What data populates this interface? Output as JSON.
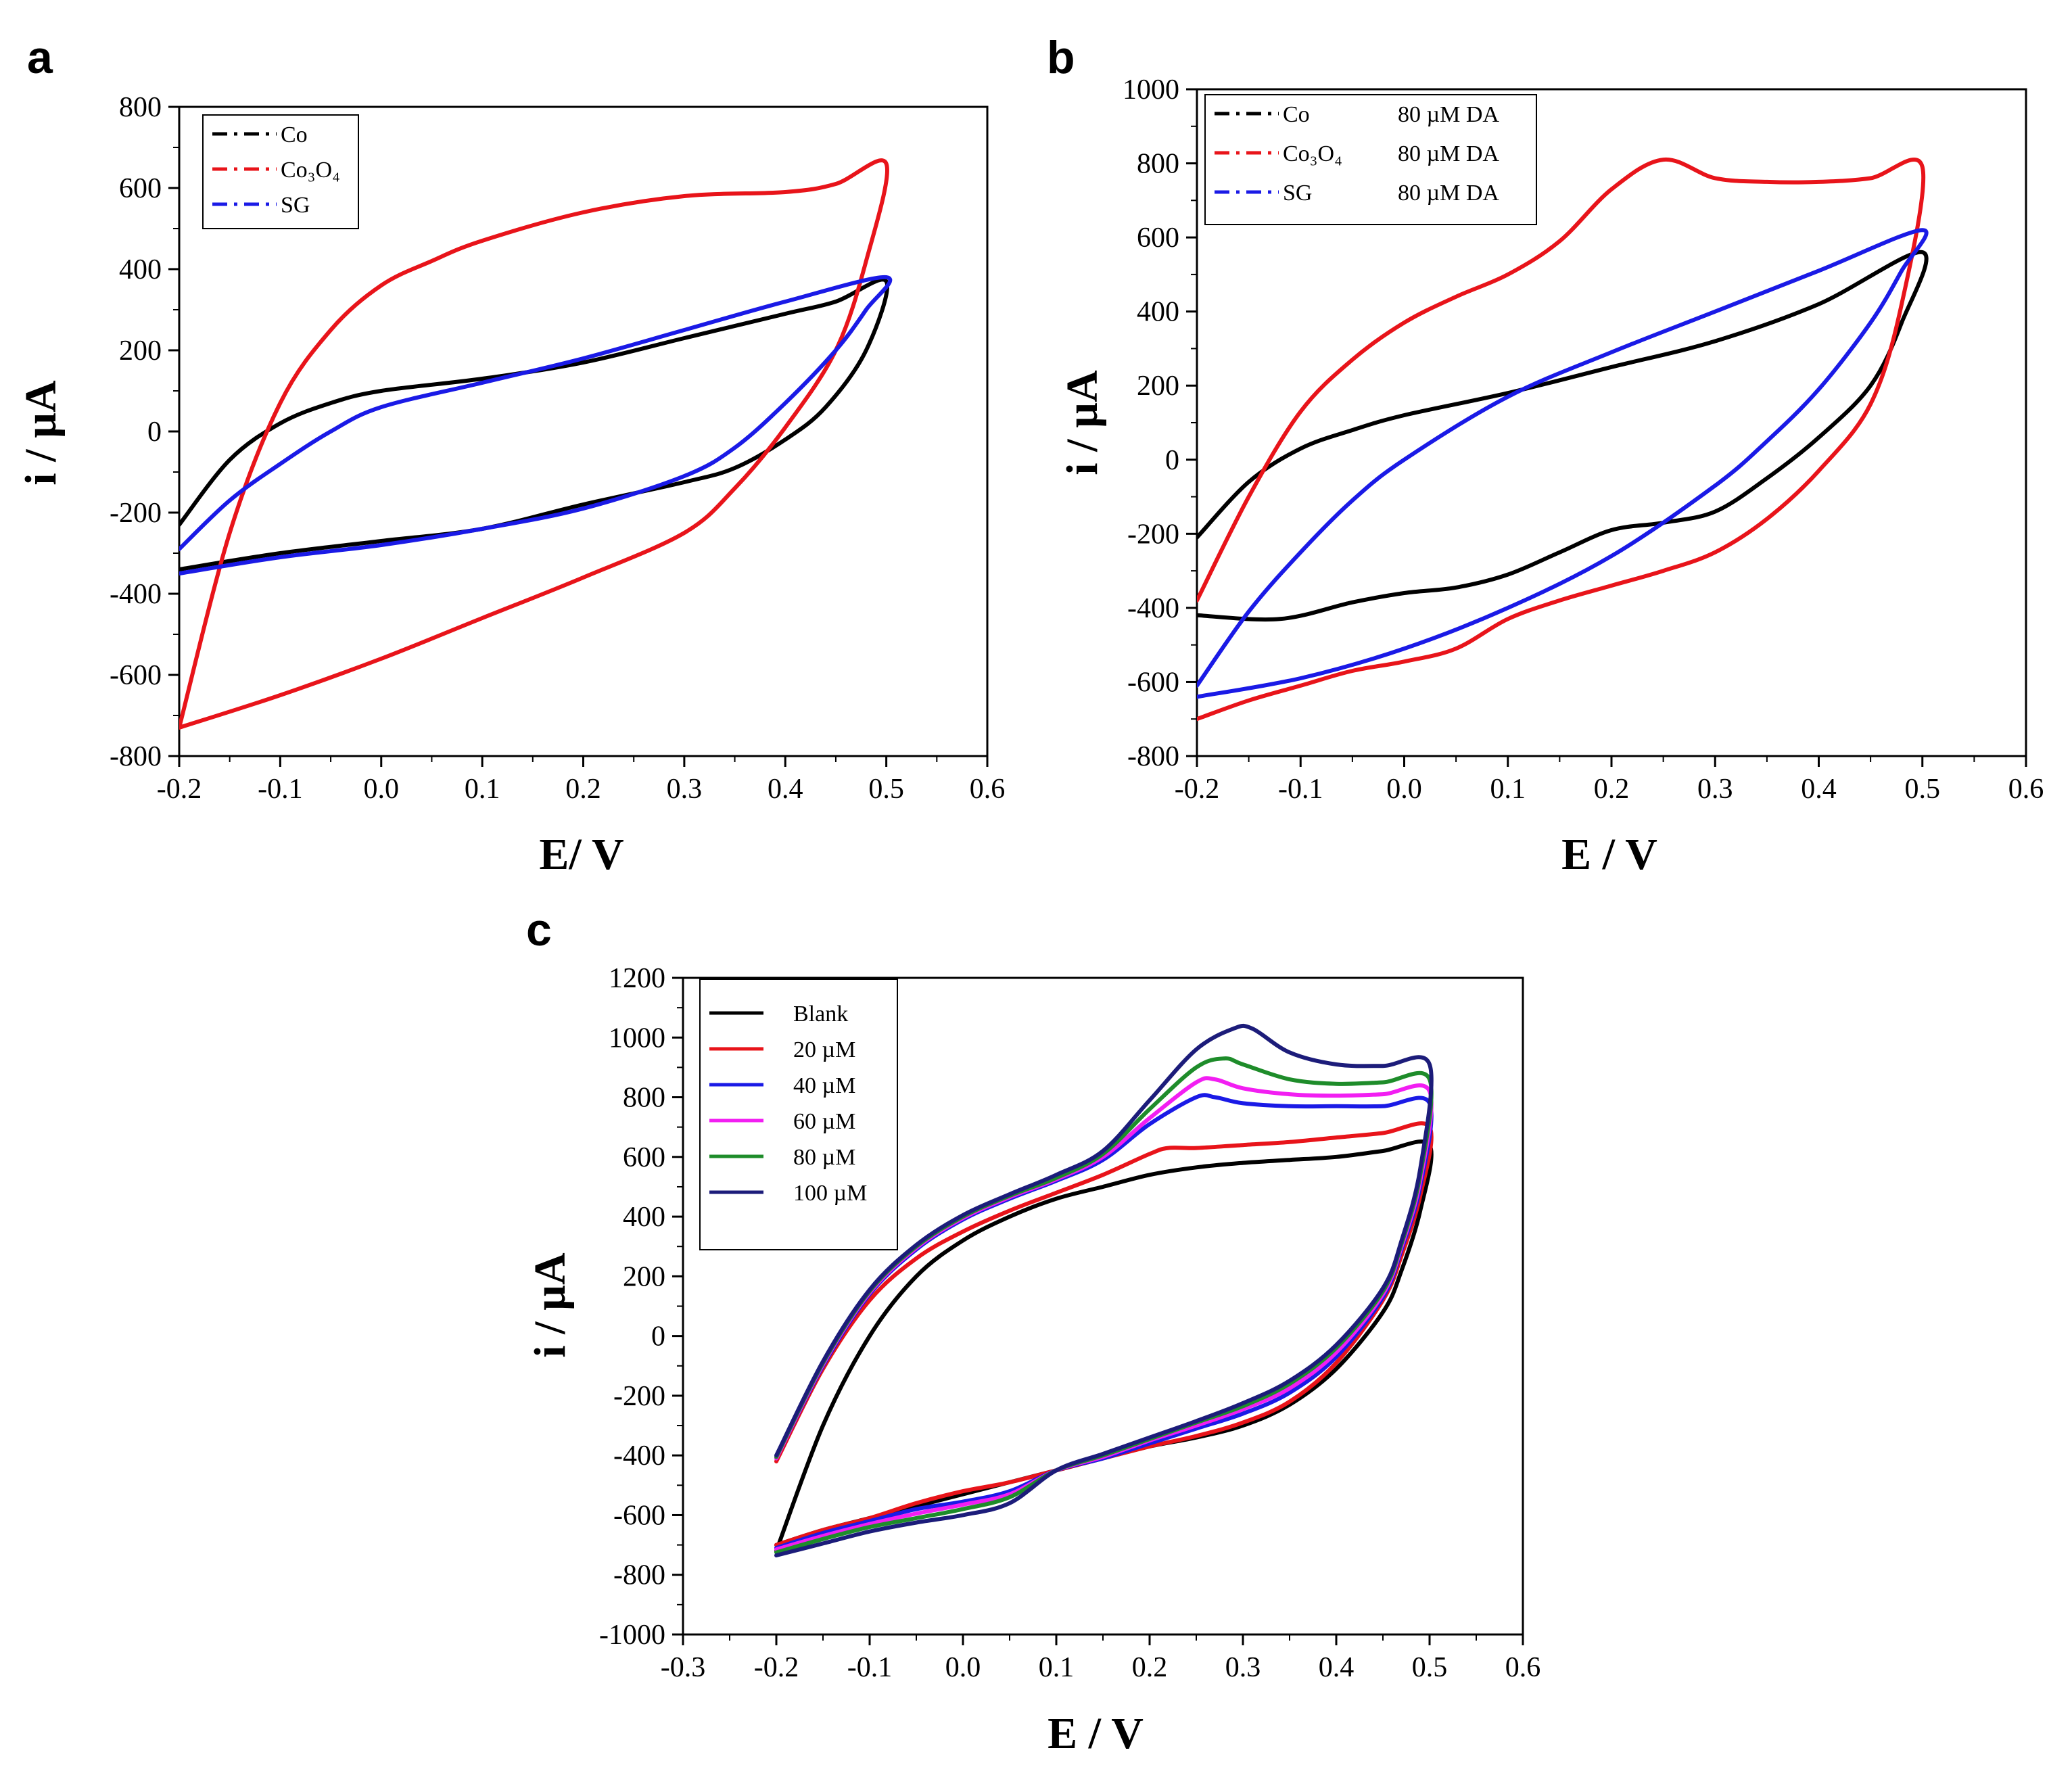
{
  "chart_data": [
    {
      "panel": "a",
      "type": "line",
      "title": "",
      "xlabel": "E/ V",
      "ylabel": "i / µA",
      "xlim": [
        -0.2,
        0.6
      ],
      "ylim": [
        -800,
        800
      ],
      "xticks": [
        "-0.2",
        "-0.1",
        "0.0",
        "0.1",
        "0.2",
        "0.3",
        "0.4",
        "0.5",
        "0.6"
      ],
      "yticks": [
        "800",
        "600",
        "400",
        "200",
        "0",
        "-200",
        "-400",
        "-600",
        "-800"
      ],
      "legend": {
        "placement": "top-left",
        "style": "dash-dot"
      },
      "series": [
        {
          "name": "Co",
          "legend_label": "Co",
          "color": "#000000",
          "x": [
            -0.2,
            -0.15,
            -0.1,
            -0.05,
            0.0,
            0.1,
            0.2,
            0.3,
            0.4,
            0.45,
            0.5,
            0.48,
            0.44,
            0.4,
            0.35,
            0.3,
            0.2,
            0.1,
            0.0,
            -0.1,
            -0.2
          ],
          "y": [
            -230,
            -70,
            20,
            70,
            100,
            130,
            170,
            230,
            290,
            320,
            370,
            200,
            60,
            -20,
            -90,
            -125,
            -180,
            -240,
            -270,
            -300,
            -340
          ]
        },
        {
          "name": "Co3O4",
          "legend_label": "Co₃O₄",
          "color": "#e8141a",
          "x": [
            -0.2,
            -0.15,
            -0.1,
            -0.05,
            0.0,
            0.05,
            0.1,
            0.2,
            0.3,
            0.4,
            0.45,
            0.5,
            0.48,
            0.45,
            0.4,
            0.35,
            0.3,
            0.2,
            0.1,
            0.0,
            -0.1,
            -0.2
          ],
          "y": [
            -730,
            -250,
            70,
            250,
            360,
            420,
            470,
            540,
            580,
            590,
            610,
            660,
            420,
            200,
            10,
            -140,
            -250,
            -360,
            -460,
            -560,
            -650,
            -730
          ]
        },
        {
          "name": "SG",
          "legend_label": "SG",
          "color": "#1a1ae6",
          "x": [
            -0.2,
            -0.15,
            -0.1,
            -0.05,
            0.0,
            0.1,
            0.2,
            0.3,
            0.4,
            0.5,
            0.48,
            0.45,
            0.4,
            0.35,
            0.3,
            0.2,
            0.1,
            0.0,
            -0.1,
            -0.2
          ],
          "y": [
            -290,
            -170,
            -80,
            0,
            60,
            120,
            180,
            250,
            320,
            380,
            300,
            200,
            70,
            -40,
            -110,
            -190,
            -240,
            -280,
            -310,
            -350
          ]
        }
      ]
    },
    {
      "panel": "b",
      "type": "line",
      "title": "",
      "xlabel": "E / V",
      "ylabel": "i / µA",
      "xlim": [
        -0.2,
        0.6
      ],
      "ylim": [
        -800,
        1000
      ],
      "xticks": [
        "-0.2",
        "-0.1",
        "0.0",
        "0.1",
        "0.2",
        "0.3",
        "0.4",
        "0.5",
        "0.6"
      ],
      "yticks": [
        "1000",
        "800",
        "600",
        "400",
        "200",
        "0",
        "-200",
        "-400",
        "-600",
        "-800"
      ],
      "legend": {
        "placement": "top-left",
        "style": "dash-dot"
      },
      "series": [
        {
          "name": "Co",
          "legend_label": "Co",
          "legend_suffix": "80 µM DA",
          "color": "#000000",
          "x": [
            -0.2,
            -0.15,
            -0.1,
            -0.05,
            0.0,
            0.1,
            0.2,
            0.3,
            0.4,
            0.5,
            0.48,
            0.45,
            0.4,
            0.35,
            0.3,
            0.25,
            0.2,
            0.15,
            0.1,
            0.05,
            0.0,
            -0.05,
            -0.12,
            -0.2
          ],
          "y": [
            -210,
            -60,
            30,
            80,
            120,
            180,
            250,
            320,
            420,
            560,
            370,
            200,
            60,
            -50,
            -140,
            -170,
            -190,
            -250,
            -310,
            -345,
            -360,
            -385,
            -430,
            -420
          ]
        },
        {
          "name": "Co3O4",
          "legend_label": "Co₃O₄",
          "legend_suffix": "80 µM  DA",
          "color": "#e8141a",
          "x": [
            -0.2,
            -0.15,
            -0.1,
            -0.05,
            0.0,
            0.05,
            0.1,
            0.15,
            0.2,
            0.25,
            0.3,
            0.35,
            0.4,
            0.45,
            0.5,
            0.48,
            0.45,
            0.4,
            0.35,
            0.3,
            0.25,
            0.2,
            0.15,
            0.1,
            0.05,
            0.0,
            -0.05,
            -0.1,
            -0.15,
            -0.2
          ],
          "y": [
            -380,
            -100,
            130,
            270,
            370,
            440,
            500,
            590,
            730,
            810,
            760,
            750,
            750,
            760,
            790,
            420,
            150,
            -30,
            -160,
            -250,
            -300,
            -340,
            -380,
            -430,
            -510,
            -545,
            -570,
            -610,
            -650,
            -700
          ]
        },
        {
          "name": "SG",
          "legend_label": "SG",
          "legend_suffix": "80 µM DA",
          "color": "#1a1ae6",
          "x": [
            -0.2,
            -0.15,
            -0.1,
            -0.05,
            0.0,
            0.1,
            0.2,
            0.3,
            0.4,
            0.5,
            0.48,
            0.45,
            0.4,
            0.35,
            0.3,
            0.2,
            0.1,
            0.0,
            -0.1,
            -0.2
          ],
          "y": [
            -610,
            -410,
            -250,
            -110,
            0,
            170,
            290,
            400,
            510,
            620,
            510,
            370,
            190,
            50,
            -70,
            -260,
            -400,
            -510,
            -590,
            -640
          ]
        }
      ]
    },
    {
      "panel": "c",
      "type": "line",
      "title": "",
      "xlabel": "E / V",
      "ylabel": "i / µA",
      "xlim": [
        -0.3,
        0.6
      ],
      "ylim": [
        -1000,
        1200
      ],
      "xticks": [
        "-0.3",
        "-0.2",
        "-0.1",
        "0.0",
        "0.1",
        "0.2",
        "0.3",
        "0.4",
        "0.5",
        "0.6"
      ],
      "yticks": [
        "1200",
        "1000",
        "800",
        "600",
        "400",
        "200",
        "0",
        "-200",
        "-400",
        "-600",
        "-800",
        "-1000"
      ],
      "legend": {
        "placement": "top-left",
        "style": "solid"
      },
      "series": [
        {
          "name": "Blank",
          "legend_label": "Blank",
          "color": "#000000",
          "x": [
            -0.2,
            -0.15,
            -0.1,
            -0.05,
            0.0,
            0.05,
            0.1,
            0.15,
            0.2,
            0.25,
            0.3,
            0.35,
            0.4,
            0.45,
            0.5,
            0.49,
            0.47,
            0.45,
            0.4,
            0.35,
            0.3,
            0.25,
            0.2,
            0.15,
            0.1,
            0.05,
            0.0,
            -0.05,
            -0.1,
            -0.15,
            -0.2
          ],
          "y": [
            -720,
            -300,
            0,
            200,
            320,
            400,
            460,
            500,
            540,
            565,
            580,
            590,
            600,
            620,
            640,
            420,
            220,
            80,
            -110,
            -230,
            -300,
            -340,
            -370,
            -410,
            -450,
            -490,
            -530,
            -570,
            -610,
            -650,
            -700
          ]
        },
        {
          "name": "20 µM",
          "legend_label": "20 µM",
          "color": "#e8141a",
          "x": [
            -0.2,
            -0.15,
            -0.1,
            -0.05,
            0.0,
            0.05,
            0.1,
            0.15,
            0.2,
            0.22,
            0.25,
            0.3,
            0.35,
            0.4,
            0.45,
            0.5,
            0.49,
            0.47,
            0.45,
            0.4,
            0.35,
            0.3,
            0.25,
            0.2,
            0.15,
            0.1,
            0.05,
            0.0,
            -0.05,
            -0.1,
            -0.15,
            -0.2
          ],
          "y": [
            -420,
            -110,
            120,
            260,
            350,
            420,
            480,
            540,
            610,
            630,
            630,
            640,
            650,
            665,
            680,
            700,
            470,
            270,
            120,
            -90,
            -220,
            -290,
            -335,
            -370,
            -410,
            -450,
            -490,
            -520,
            -560,
            -610,
            -650,
            -700
          ]
        },
        {
          "name": "40 µM",
          "legend_label": "40 µM",
          "color": "#1a1ae6",
          "x": [
            -0.2,
            -0.15,
            -0.1,
            -0.05,
            0.0,
            0.05,
            0.1,
            0.15,
            0.2,
            0.25,
            0.27,
            0.3,
            0.35,
            0.4,
            0.45,
            0.5,
            0.49,
            0.47,
            0.45,
            0.4,
            0.35,
            0.3,
            0.25,
            0.2,
            0.15,
            0.1,
            0.05,
            0.0,
            -0.05,
            -0.1,
            -0.15,
            -0.2
          ],
          "y": [
            -410,
            -100,
            140,
            290,
            390,
            460,
            520,
            590,
            710,
            800,
            800,
            780,
            770,
            770,
            770,
            780,
            500,
            290,
            130,
            -70,
            -190,
            -260,
            -310,
            -360,
            -410,
            -450,
            -520,
            -555,
            -580,
            -620,
            -660,
            -710
          ]
        },
        {
          "name": "60 µM",
          "legend_label": "60 µM",
          "color": "#f21ef2",
          "x": [
            -0.2,
            -0.15,
            -0.1,
            -0.05,
            0.0,
            0.05,
            0.1,
            0.15,
            0.2,
            0.25,
            0.27,
            0.3,
            0.35,
            0.4,
            0.45,
            0.5,
            0.49,
            0.47,
            0.45,
            0.4,
            0.35,
            0.3,
            0.25,
            0.2,
            0.15,
            0.1,
            0.05,
            0.0,
            -0.05,
            -0.1,
            -0.15,
            -0.2
          ],
          "y": [
            -410,
            -95,
            145,
            295,
            395,
            465,
            525,
            600,
            730,
            850,
            860,
            830,
            810,
            805,
            810,
            820,
            520,
            300,
            140,
            -55,
            -175,
            -245,
            -300,
            -350,
            -405,
            -450,
            -530,
            -565,
            -595,
            -630,
            -670,
            -715
          ]
        },
        {
          "name": "80 µM",
          "legend_label": "80 µM",
          "color": "#1e8c2a",
          "x": [
            -0.2,
            -0.15,
            -0.1,
            -0.05,
            0.0,
            0.05,
            0.1,
            0.15,
            0.2,
            0.25,
            0.28,
            0.3,
            0.35,
            0.4,
            0.45,
            0.5,
            0.49,
            0.47,
            0.45,
            0.4,
            0.35,
            0.3,
            0.25,
            0.2,
            0.15,
            0.1,
            0.05,
            0.0,
            -0.05,
            -0.1,
            -0.15,
            -0.2
          ],
          "y": [
            -405,
            -90,
            150,
            300,
            400,
            470,
            530,
            610,
            760,
            900,
            930,
            910,
            860,
            845,
            850,
            860,
            540,
            310,
            150,
            -40,
            -160,
            -235,
            -290,
            -345,
            -400,
            -450,
            -540,
            -580,
            -610,
            -640,
            -680,
            -725
          ]
        },
        {
          "name": "100 µM",
          "legend_label": "100 µM",
          "color": "#1c1c7a",
          "x": [
            -0.2,
            -0.15,
            -0.1,
            -0.05,
            0.0,
            0.05,
            0.1,
            0.15,
            0.2,
            0.25,
            0.29,
            0.31,
            0.35,
            0.4,
            0.45,
            0.5,
            0.49,
            0.47,
            0.45,
            0.4,
            0.35,
            0.3,
            0.25,
            0.2,
            0.15,
            0.1,
            0.05,
            0.0,
            -0.05,
            -0.1,
            -0.15,
            -0.2
          ],
          "y": [
            -400,
            -85,
            155,
            305,
            405,
            475,
            540,
            620,
            790,
            960,
            1030,
            1030,
            950,
            910,
            905,
            910,
            560,
            320,
            160,
            -30,
            -150,
            -225,
            -285,
            -340,
            -395,
            -450,
            -560,
            -600,
            -625,
            -655,
            -695,
            -735
          ]
        }
      ]
    }
  ]
}
